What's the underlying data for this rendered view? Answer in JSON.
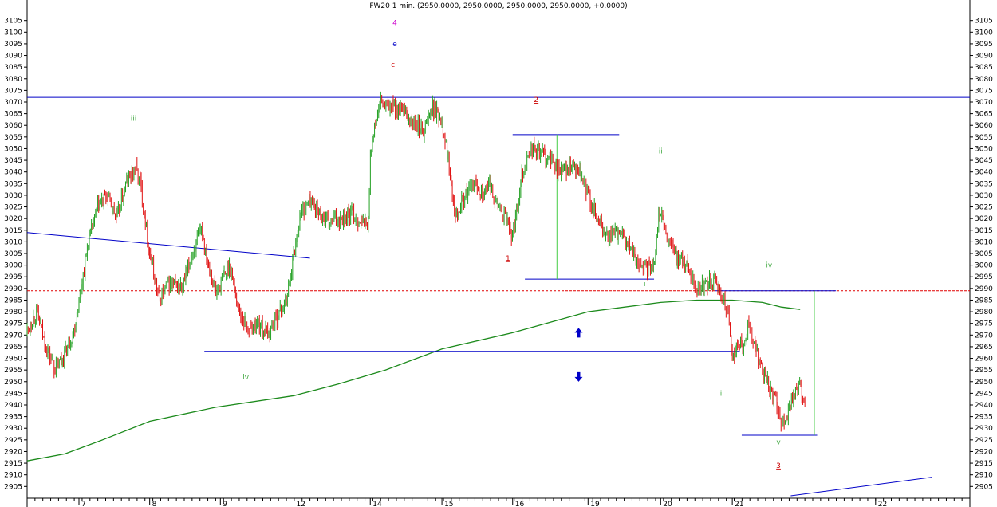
{
  "chart_data": {
    "type": "candlestick",
    "title": "FW20 1 min. (2950.0000, 2950.0000, 2950.0000, 2950.0000, +0.0000)",
    "ylim": [
      2901,
      3109
    ],
    "y_ticks": [
      2905,
      2910,
      2915,
      2920,
      2925,
      2930,
      2935,
      2940,
      2945,
      2950,
      2955,
      2960,
      2965,
      2970,
      2975,
      2980,
      2985,
      2990,
      2995,
      3000,
      3005,
      3010,
      3015,
      3020,
      3025,
      3030,
      3035,
      3040,
      3045,
      3050,
      3055,
      3060,
      3065,
      3070,
      3075,
      3080,
      3085,
      3090,
      3095,
      3100,
      3105
    ],
    "x_ticks": [
      "7",
      "8",
      "9",
      "12",
      "14",
      "15",
      "16",
      "19",
      "20",
      "21",
      "22"
    ],
    "x_tick_frac": [
      0.055,
      0.13,
      0.205,
      0.283,
      0.364,
      0.44,
      0.515,
      0.595,
      0.672,
      0.748,
      0.9
    ],
    "grid": false,
    "price_path": [
      [
        0.0,
        2972
      ],
      [
        0.01,
        2980
      ],
      [
        0.02,
        2965
      ],
      [
        0.03,
        2955
      ],
      [
        0.04,
        2962
      ],
      [
        0.05,
        2972
      ],
      [
        0.055,
        2985
      ],
      [
        0.065,
        3010
      ],
      [
        0.075,
        3025
      ],
      [
        0.085,
        3030
      ],
      [
        0.095,
        3020
      ],
      [
        0.105,
        3035
      ],
      [
        0.115,
        3042
      ],
      [
        0.12,
        3035
      ],
      [
        0.13,
        3005
      ],
      [
        0.14,
        2985
      ],
      [
        0.15,
        2992
      ],
      [
        0.165,
        2990
      ],
      [
        0.175,
        3005
      ],
      [
        0.185,
        3015
      ],
      [
        0.19,
        3005
      ],
      [
        0.2,
        2988
      ],
      [
        0.205,
        2992
      ],
      [
        0.215,
        3000
      ],
      [
        0.225,
        2980
      ],
      [
        0.235,
        2972
      ],
      [
        0.245,
        2975
      ],
      [
        0.255,
        2970
      ],
      [
        0.265,
        2978
      ],
      [
        0.275,
        2985
      ],
      [
        0.28,
        2998
      ],
      [
        0.285,
        3010
      ],
      [
        0.29,
        3022
      ],
      [
        0.3,
        3028
      ],
      [
        0.31,
        3022
      ],
      [
        0.32,
        3018
      ],
      [
        0.33,
        3020
      ],
      [
        0.345,
        3022
      ],
      [
        0.355,
        3018
      ],
      [
        0.362,
        3018
      ],
      [
        0.364,
        3048
      ],
      [
        0.37,
        3062
      ],
      [
        0.375,
        3070
      ],
      [
        0.38,
        3068
      ],
      [
        0.39,
        3068
      ],
      [
        0.4,
        3065
      ],
      [
        0.41,
        3060
      ],
      [
        0.42,
        3058
      ],
      [
        0.43,
        3068
      ],
      [
        0.44,
        3062
      ],
      [
        0.445,
        3050
      ],
      [
        0.45,
        3035
      ],
      [
        0.455,
        3022
      ],
      [
        0.465,
        3030
      ],
      [
        0.475,
        3035
      ],
      [
        0.485,
        3030
      ],
      [
        0.49,
        3035
      ],
      [
        0.5,
        3025
      ],
      [
        0.51,
        3018
      ],
      [
        0.515,
        3012
      ],
      [
        0.525,
        3040
      ],
      [
        0.535,
        3050
      ],
      [
        0.545,
        3048
      ],
      [
        0.555,
        3045
      ],
      [
        0.565,
        3040
      ],
      [
        0.575,
        3042
      ],
      [
        0.585,
        3040
      ],
      [
        0.595,
        3030
      ],
      [
        0.605,
        3020
      ],
      [
        0.615,
        3012
      ],
      [
        0.625,
        3014
      ],
      [
        0.635,
        3010
      ],
      [
        0.645,
        3003
      ],
      [
        0.655,
        2998
      ],
      [
        0.665,
        3000
      ],
      [
        0.67,
        3025
      ],
      [
        0.68,
        3010
      ],
      [
        0.69,
        3003
      ],
      [
        0.7,
        3000
      ],
      [
        0.71,
        2990
      ],
      [
        0.72,
        2992
      ],
      [
        0.73,
        2992
      ],
      [
        0.74,
        2985
      ],
      [
        0.745,
        2975
      ],
      [
        0.748,
        2958
      ],
      [
        0.755,
        2968
      ],
      [
        0.76,
        2965
      ],
      [
        0.765,
        2975
      ],
      [
        0.775,
        2960
      ],
      [
        0.785,
        2950
      ],
      [
        0.795,
        2940
      ],
      [
        0.8,
        2930
      ],
      [
        0.805,
        2935
      ],
      [
        0.81,
        2942
      ],
      [
        0.815,
        2945
      ],
      [
        0.82,
        2948
      ],
      [
        0.825,
        2940
      ]
    ],
    "moving_average": [
      [
        0.0,
        2916
      ],
      [
        0.04,
        2919
      ],
      [
        0.08,
        2925
      ],
      [
        0.13,
        2933
      ],
      [
        0.2,
        2939
      ],
      [
        0.283,
        2944
      ],
      [
        0.33,
        2949
      ],
      [
        0.38,
        2955
      ],
      [
        0.44,
        2964
      ],
      [
        0.515,
        2971
      ],
      [
        0.595,
        2980
      ],
      [
        0.672,
        2984
      ],
      [
        0.71,
        2985
      ],
      [
        0.748,
        2985
      ],
      [
        0.78,
        2984
      ],
      [
        0.8,
        2982
      ],
      [
        0.82,
        2981
      ]
    ],
    "horizontal_lines": [
      {
        "y": 3072,
        "x_start": 0.0,
        "x_end": 1.0,
        "color": "#0000c8",
        "style": "solid"
      },
      {
        "y": 2989,
        "x_start": 0.0,
        "x_end": 1.0,
        "color": "#e00000",
        "style": "dashed"
      },
      {
        "y": 2963,
        "x_start": 0.188,
        "x_end": 0.756,
        "color": "#0000c8",
        "style": "solid"
      },
      {
        "y": 3056,
        "x_start": 0.515,
        "x_end": 0.628,
        "color": "#0000c8",
        "style": "solid"
      },
      {
        "y": 2994,
        "x_start": 0.528,
        "x_end": 0.665,
        "color": "#0000c8",
        "style": "solid"
      },
      {
        "y": 2989,
        "x_start": 0.73,
        "x_end": 0.858,
        "color": "#0000c8",
        "style": "solid"
      },
      {
        "y": 2927,
        "x_start": 0.758,
        "x_end": 0.838,
        "color": "#0000c8",
        "style": "solid"
      }
    ],
    "trend_lines": [
      {
        "x1": 0.0,
        "y1": 3014,
        "x2": 0.3,
        "y2": 3003,
        "color": "#0000c8"
      },
      {
        "x1": 0.81,
        "y1": 2901,
        "x2": 0.96,
        "y2": 2909,
        "color": "#0000c8"
      }
    ],
    "vertical_lines": [
      {
        "x": 0.562,
        "y1": 3056,
        "y2": 2994,
        "color": "#44cc44"
      },
      {
        "x": 0.835,
        "y1": 2989,
        "y2": 2927,
        "color": "#44cc44"
      }
    ],
    "wave_labels": [
      {
        "text": "4",
        "x": 0.39,
        "y": 3103,
        "color": "#cc00cc"
      },
      {
        "text": "e",
        "x": 0.39,
        "y": 3094,
        "color": "#0000c8"
      },
      {
        "text": "c",
        "x": 0.388,
        "y": 3085,
        "color": "#cc0000"
      },
      {
        "text": "2",
        "x": 0.54,
        "y": 3070,
        "color": "#cc0000"
      },
      {
        "text": "1",
        "x": 0.51,
        "y": 3002,
        "color": "#cc0000"
      },
      {
        "text": "iii",
        "x": 0.113,
        "y": 3062,
        "color": "#44aa44"
      },
      {
        "text": "iv",
        "x": 0.232,
        "y": 2951,
        "color": "#44aa44"
      },
      {
        "text": "ii",
        "x": 0.672,
        "y": 3048,
        "color": "#44aa44"
      },
      {
        "text": "i",
        "x": 0.655,
        "y": 2991,
        "color": "#44aa44"
      },
      {
        "text": "iv",
        "x": 0.787,
        "y": 2999,
        "color": "#44aa44"
      },
      {
        "text": "iii",
        "x": 0.736,
        "y": 2944,
        "color": "#44aa44"
      },
      {
        "text": "v",
        "x": 0.797,
        "y": 2923,
        "color": "#44aa44"
      },
      {
        "text": "3",
        "x": 0.797,
        "y": 2913,
        "color": "#cc0000"
      }
    ],
    "arrows": [
      {
        "direction": "up",
        "x": 0.585,
        "y": 2971,
        "color": "#0000c8"
      },
      {
        "direction": "down",
        "x": 0.585,
        "y": 2952,
        "color": "#0000c8"
      }
    ]
  }
}
